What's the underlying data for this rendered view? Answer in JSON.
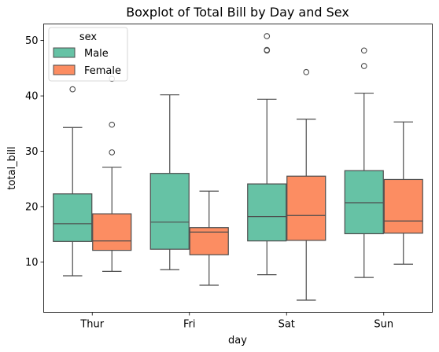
{
  "chart_data": {
    "type": "boxplot",
    "title": "Boxplot of Total Bill by Day and Sex",
    "xlabel": "day",
    "ylabel": "total_bill",
    "categories": [
      "Thur",
      "Fri",
      "Sat",
      "Sun"
    ],
    "ylim": [
      0.9,
      53.0
    ],
    "yticks": [
      10,
      20,
      30,
      40,
      50
    ],
    "legend": {
      "title": "sex",
      "placement": "top-left"
    },
    "series": [
      {
        "name": "Male",
        "color": "#66c2a5",
        "boxes": [
          {
            "whisker_low": 7.5,
            "q1": 13.7,
            "median": 16.9,
            "q3": 22.3,
            "whisker_high": 34.3,
            "outliers": [
              41.2
            ]
          },
          {
            "whisker_low": 8.6,
            "q1": 12.3,
            "median": 17.2,
            "q3": 26.0,
            "whisker_high": 40.2,
            "outliers": []
          },
          {
            "whisker_low": 7.7,
            "q1": 13.8,
            "median": 18.2,
            "q3": 24.1,
            "whisker_high": 39.4,
            "outliers": [
              48.2,
              48.3,
              50.8
            ]
          },
          {
            "whisker_low": 7.2,
            "q1": 15.1,
            "median": 20.7,
            "q3": 26.5,
            "whisker_high": 40.5,
            "outliers": [
              45.4,
              48.2
            ]
          }
        ]
      },
      {
        "name": "Female",
        "color": "#fc8d62",
        "boxes": [
          {
            "whisker_low": 8.3,
            "q1": 12.1,
            "median": 13.8,
            "q3": 18.7,
            "whisker_high": 27.1,
            "outliers": [
              29.8,
              34.8,
              43.1
            ]
          },
          {
            "whisker_low": 5.8,
            "q1": 11.3,
            "median": 15.4,
            "q3": 16.2,
            "whisker_high": 22.8,
            "outliers": []
          },
          {
            "whisker_low": 3.1,
            "q1": 13.9,
            "median": 18.4,
            "q3": 25.5,
            "whisker_high": 35.8,
            "outliers": [
              44.3
            ]
          },
          {
            "whisker_low": 9.6,
            "q1": 15.2,
            "median": 17.4,
            "q3": 24.9,
            "whisker_high": 35.3,
            "outliers": []
          }
        ]
      }
    ]
  }
}
